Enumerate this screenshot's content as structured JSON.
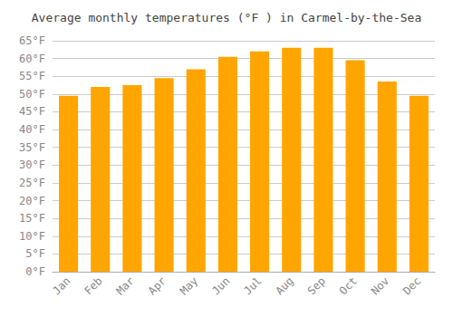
{
  "chart_data": {
    "type": "bar",
    "title": "Average monthly temperatures (°F ) in Carmel-by-the-Sea",
    "categories": [
      "Jan",
      "Feb",
      "Mar",
      "Apr",
      "May",
      "Jun",
      "Jul",
      "Aug",
      "Sep",
      "Oct",
      "Nov",
      "Dec"
    ],
    "values": [
      49.5,
      52,
      52.5,
      54.5,
      57,
      60.5,
      62,
      63,
      63,
      59.5,
      53.5,
      49.5
    ],
    "color": "#FFA500",
    "ylim": [
      0,
      65
    ],
    "yticks": [
      {
        "value": 0,
        "label": "0°F"
      },
      {
        "value": 5,
        "label": "5°F"
      },
      {
        "value": 10,
        "label": "10°F"
      },
      {
        "value": 15,
        "label": "15°F"
      },
      {
        "value": 20,
        "label": "20°F"
      },
      {
        "value": 25,
        "label": "25°F"
      },
      {
        "value": 30,
        "label": "30°F"
      },
      {
        "value": 35,
        "label": "35°F"
      },
      {
        "value": 40,
        "label": "40°F"
      },
      {
        "value": 45,
        "label": "45°F"
      },
      {
        "value": 50,
        "label": "50°F"
      },
      {
        "value": 55,
        "label": "55°F"
      },
      {
        "value": 60,
        "label": "60°F"
      },
      {
        "value": 65,
        "label": "65°F"
      }
    ],
    "grid": true
  }
}
